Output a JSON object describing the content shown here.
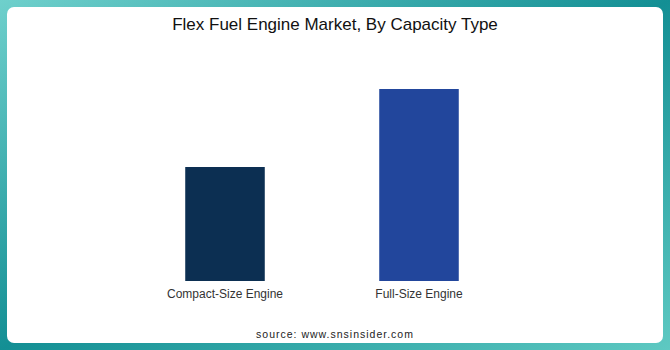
{
  "chart_data": {
    "type": "bar",
    "title": "Flex Fuel Engine Market, By Capacity Type",
    "categories": [
      "Compact-Size Engine",
      "Full-Size Engine"
    ],
    "values": [
      114,
      192
    ],
    "colors": [
      "#0c2f52",
      "#22469c"
    ],
    "ylim": [
      0,
      220
    ],
    "tick_labels": false,
    "grid": false,
    "source": "source: www.snsinsider.com"
  }
}
